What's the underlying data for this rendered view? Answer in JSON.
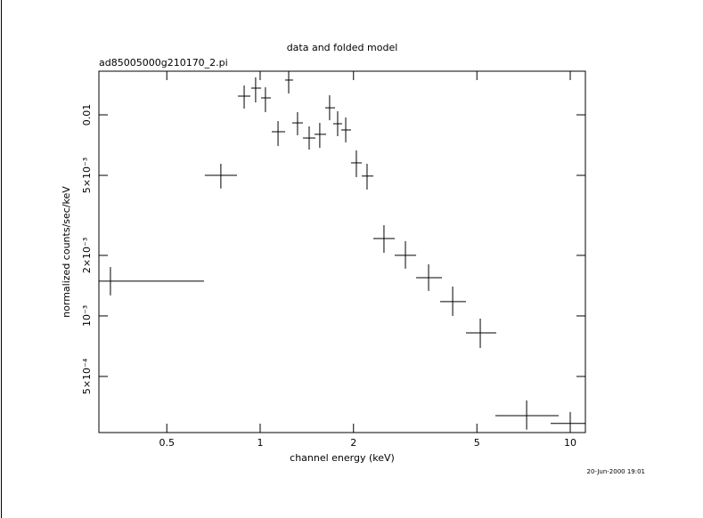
{
  "chart_data": {
    "type": "scatter",
    "title": "data and folded model",
    "subtitle": "ad85005000g210170_2.pi",
    "x_label": "channel energy (keV)",
    "y_label": "normalized counts/sec/keV",
    "timestamp": "20-Jun-2000 19:01",
    "xscale": "log",
    "yscale": "log",
    "xlim": [
      0.302,
      11.19
    ],
    "ylim": [
      0.000263,
      0.01648
    ],
    "xticks": [
      0.5,
      1,
      2,
      5,
      10
    ],
    "yticks": [
      0.01,
      {
        "value": 0.005,
        "label": "5×10⁻³"
      },
      {
        "value": 0.002,
        "label": "2×10⁻³"
      },
      {
        "value": 0.001,
        "label": "10⁻³"
      },
      {
        "value": 0.0005,
        "label": "5×10⁻⁴"
      }
    ],
    "color": "#000000",
    "x": [
      0.329,
      0.747,
      0.888,
      0.967,
      1.04,
      1.142,
      1.236,
      1.32,
      1.439,
      1.557,
      1.675,
      1.778,
      1.888,
      2.043,
      2.212,
      2.508,
      2.941,
      3.493,
      4.177,
      5.127,
      7.233,
      10.0
    ],
    "x_low": [
      0.302,
      0.663,
      0.848,
      0.936,
      1.007,
      1.09,
      1.204,
      1.269,
      1.374,
      1.497,
      1.621,
      1.72,
      1.826,
      1.964,
      2.127,
      2.317,
      2.716,
      3.184,
      3.806,
      4.611,
      5.736,
      8.647
    ],
    "x_high": [
      0.659,
      0.842,
      0.93,
      1.007,
      1.083,
      1.204,
      1.277,
      1.374,
      1.507,
      1.632,
      1.744,
      1.838,
      1.964,
      2.127,
      2.317,
      2.716,
      3.184,
      3.857,
      4.611,
      5.774,
      9.176,
      11.19
    ],
    "y": [
      0.001489,
      0.005,
      0.01239,
      0.01358,
      0.01214,
      0.00824,
      0.01489,
      0.00912,
      0.00767,
      0.008,
      0.01084,
      0.00903,
      0.00841,
      0.00577,
      0.00496,
      0.002427,
      0.002,
      0.001549,
      0.001178,
      0.000824,
      0.000319,
      0.000292
    ],
    "y_low": [
      0.001265,
      0.0043,
      0.01074,
      0.01153,
      0.01031,
      0.007,
      0.01277,
      0.00791,
      0.00671,
      0.00685,
      0.0094,
      0.00783,
      0.00729,
      0.0049,
      0.00425,
      0.002061,
      0.001718,
      0.001331,
      0.001,
      0.000693,
      0.000272,
      0.000255
    ],
    "y_high": [
      0.00175,
      0.00571,
      0.01399,
      0.01535,
      0.01371,
      0.00931,
      0.01648,
      0.01031,
      0.00876,
      0.00912,
      0.01251,
      0.01042,
      0.0097,
      0.00665,
      0.00571,
      0.002825,
      0.002355,
      0.001806,
      0.0014,
      0.00097,
      0.00038,
      0.000333
    ]
  }
}
